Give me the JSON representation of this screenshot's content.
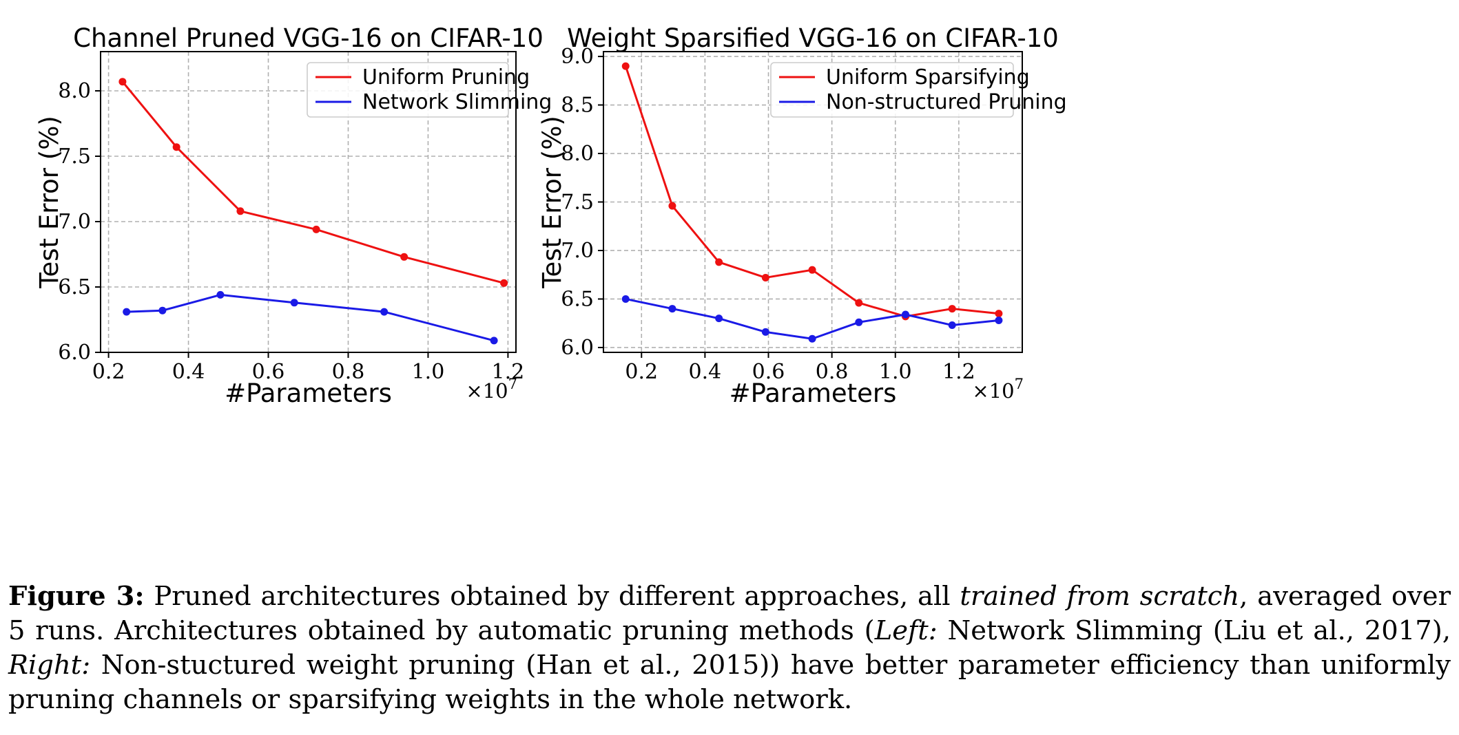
{
  "chart_data": [
    {
      "type": "line",
      "title": "Channel Pruned VGG-16 on CIFAR-10",
      "xlabel": "#Parameters",
      "ylabel": "Test Error (%)",
      "x_scale_label": "×10^7",
      "x_scale_base": "×10",
      "x_scale_exp": "7",
      "xlim": [
        0.18,
        1.22
      ],
      "ylim": [
        6.0,
        8.3
      ],
      "xticks": [
        "0.2",
        "0.4",
        "0.6",
        "0.8",
        "1.0",
        "1.2"
      ],
      "yticks": [
        "6.0",
        "6.5",
        "7.0",
        "7.5",
        "8.0"
      ],
      "grid": true,
      "legend_position": "top-right",
      "series": [
        {
          "name": "Uniform Pruning",
          "color": "#ee1111",
          "x": [
            0.235,
            0.37,
            0.53,
            0.72,
            0.94,
            1.19
          ],
          "y": [
            8.07,
            7.57,
            7.08,
            6.94,
            6.73,
            6.53
          ]
        },
        {
          "name": "Network Slimming",
          "color": "#1a1ae6",
          "x": [
            0.245,
            0.335,
            0.48,
            0.665,
            0.89,
            1.165
          ],
          "y": [
            6.31,
            6.32,
            6.44,
            6.38,
            6.31,
            6.09
          ]
        }
      ]
    },
    {
      "type": "line",
      "title": "Weight Sparsified VGG-16 on CIFAR-10",
      "xlabel": "#Parameters",
      "ylabel": "Test Error (%)",
      "x_scale_label": "×10^7",
      "x_scale_base": "×10",
      "x_scale_exp": "7",
      "xlim": [
        0.08,
        1.4
      ],
      "ylim": [
        5.95,
        9.05
      ],
      "xticks": [
        "0.2",
        "0.4",
        "0.6",
        "0.8",
        "1.0",
        "1.2"
      ],
      "yticks": [
        "6.0",
        "6.5",
        "7.0",
        "7.5",
        "8.0",
        "8.5",
        "9.0"
      ],
      "grid": true,
      "legend_position": "top-right",
      "series": [
        {
          "name": "Uniform Sparsifying",
          "color": "#ee1111",
          "x": [
            0.15,
            0.297,
            0.444,
            0.591,
            0.738,
            0.885,
            1.032,
            1.179,
            1.326
          ],
          "y": [
            8.9,
            7.46,
            6.88,
            6.72,
            6.8,
            6.46,
            6.32,
            6.4,
            6.35
          ]
        },
        {
          "name": "Non-structured Pruning",
          "color": "#1a1ae6",
          "x": [
            0.15,
            0.297,
            0.444,
            0.591,
            0.738,
            0.885,
            1.032,
            1.179,
            1.326
          ],
          "y": [
            6.5,
            6.4,
            6.3,
            6.16,
            6.09,
            6.26,
            6.34,
            6.23,
            6.28
          ]
        }
      ]
    }
  ],
  "caption": {
    "label": "Figure 3:",
    "text1": " Pruned architectures obtained by different approaches, all ",
    "italic1": "trained from scratch",
    "text2": ", averaged over 5 runs. Architectures obtained by automatic pruning methods (",
    "italic2": "Left:",
    "text3": " Network Slimming (Liu et al., 2017), ",
    "italic3": "Right:",
    "text4": " Non-stuctured weight pruning (Han et al., 2015)) have better parameter efficiency than uniformly pruning channels or sparsifying weights in the whole network."
  }
}
